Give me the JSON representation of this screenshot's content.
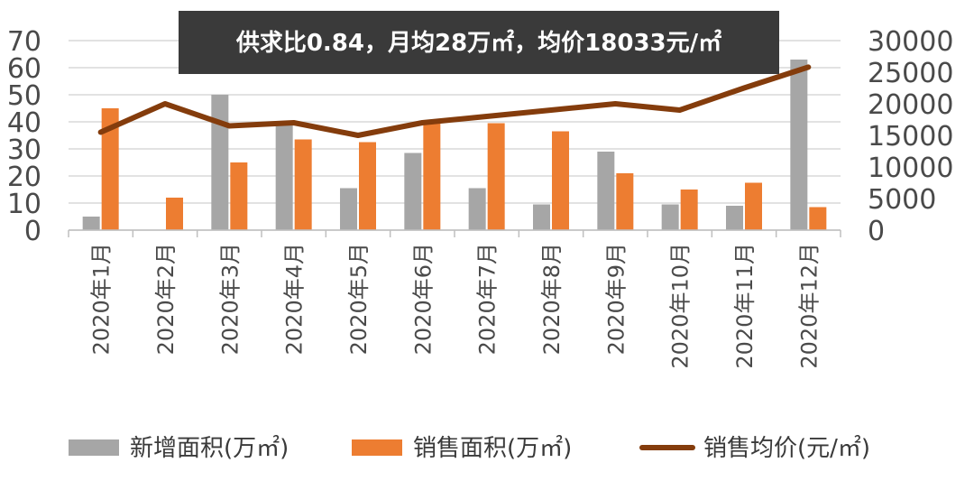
{
  "chart_data": {
    "type": "bar",
    "title": "供求比0.84，月均28万㎡，均价18033元/㎡",
    "categories": [
      "2020年1月",
      "2020年2月",
      "2020年3月",
      "2020年4月",
      "2020年5月",
      "2020年6月",
      "2020年7月",
      "2020年8月",
      "2020年9月",
      "2020年10月",
      "2020年11月",
      "2020年12月"
    ],
    "series": [
      {
        "name": "新增面积(万㎡)",
        "type": "bar",
        "axis": "left",
        "color": "#a6a6a6",
        "values": [
          5,
          0,
          50,
          39,
          15.5,
          28.5,
          15.5,
          9.5,
          29,
          9.5,
          9,
          63
        ]
      },
      {
        "name": "销售面积(万㎡)",
        "type": "bar",
        "axis": "left",
        "color": "#ed7d31",
        "values": [
          45,
          12,
          25,
          33.5,
          32.5,
          39.5,
          39.5,
          36.5,
          21,
          15,
          17.5,
          8.5
        ]
      },
      {
        "name": "销售均价(元/㎡)",
        "type": "line",
        "axis": "right",
        "color": "#843c0c",
        "values": [
          15500,
          20000,
          16500,
          17000,
          15000,
          17000,
          18000,
          19000,
          20000,
          19000,
          22500,
          25800
        ]
      }
    ],
    "ylim_left": [
      0,
      70
    ],
    "yticks_left": [
      "0",
      "10",
      "20",
      "30",
      "40",
      "50",
      "60",
      "70"
    ],
    "ylim_right": [
      0,
      30000
    ],
    "yticks_right": [
      "0",
      "5000",
      "10000",
      "15000",
      "20000",
      "25000",
      "30000"
    ],
    "grid": true,
    "legend_position": "bottom",
    "banner_bg": "#3a3a3a"
  }
}
